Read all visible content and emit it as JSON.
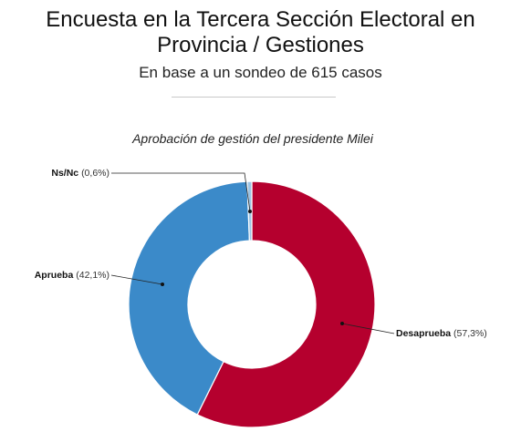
{
  "header": {
    "title_line1": "Encuesta en la Tercera Sección Electoral en",
    "title_line2": "Provincia / Gestiones",
    "subtitle": "En base a un sondeo de 615 casos"
  },
  "chart_data": {
    "type": "pie",
    "donut": true,
    "title": "Aprobación de gestión del presidente Milei",
    "slices": [
      {
        "name": "Desaprueba",
        "value": 57.3,
        "value_label": "(57,3%)",
        "color": "#b5002e"
      },
      {
        "name": "Aprueba",
        "value": 42.1,
        "value_label": "(42,1%)",
        "color": "#3b8ac9"
      },
      {
        "name": "Ns/Nc",
        "value": 0.6,
        "value_label": "(0,6%)",
        "color": "#9cc4e4"
      }
    ],
    "start": "12 o'clock",
    "direction": "clockwise",
    "legend": "none",
    "labels": "leader-lines"
  }
}
